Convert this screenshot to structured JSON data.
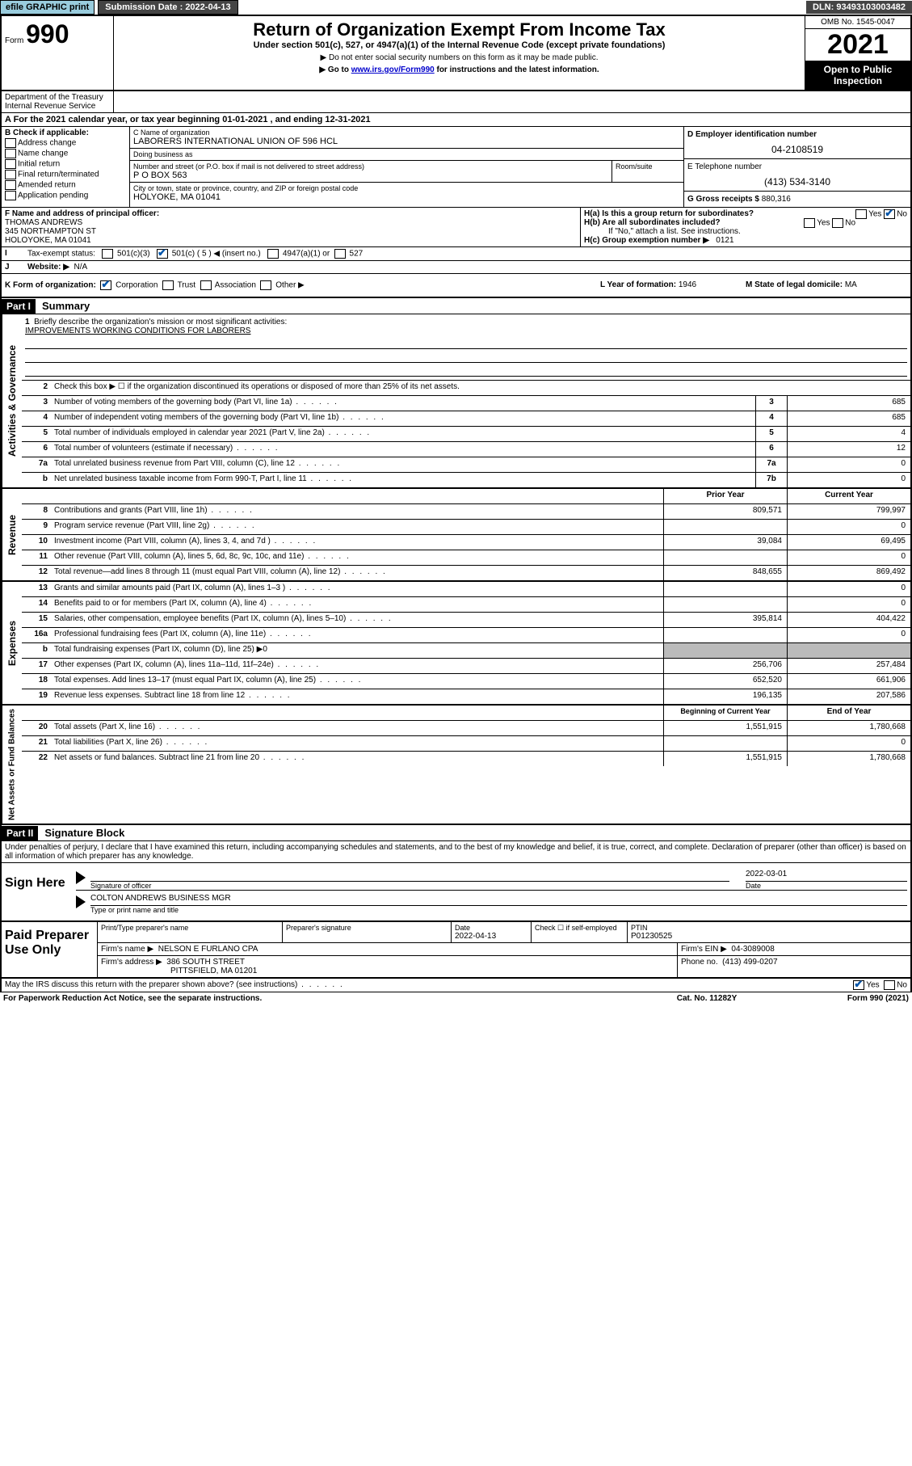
{
  "topbar": {
    "efile": "efile GRAPHIC print",
    "submission_label": "Submission Date : 2022-04-13",
    "dln": "DLN: 93493103003482"
  },
  "header": {
    "form_prefix": "Form",
    "form_no": "990",
    "title": "Return of Organization Exempt From Income Tax",
    "sub1": "Under section 501(c), 527, or 4947(a)(1) of the Internal Revenue Code (except private foundations)",
    "sub2": "▶ Do not enter social security numbers on this form as it may be made public.",
    "sub3_pre": "▶ Go to ",
    "sub3_link": "www.irs.gov/Form990",
    "sub3_post": " for instructions and the latest information.",
    "omb": "OMB No. 1545-0047",
    "year": "2021",
    "open_public": "Open to Public Inspection",
    "dept": "Department of the Treasury\nInternal Revenue Service"
  },
  "period": {
    "text_pre": "A For the 2021 calendar year, or tax year beginning ",
    "begin": "01-01-2021",
    "mid": " , and ending ",
    "end": "12-31-2021"
  },
  "blockB": {
    "b_label": "B Check if applicable:",
    "opts": [
      "Address change",
      "Name change",
      "Initial return",
      "Final return/terminated",
      "Amended return",
      "Application pending"
    ],
    "c_label": "C Name of organization",
    "org_name": "LABORERS INTERNATIONAL UNION OF 596 HCL",
    "dba_label": "Doing business as",
    "dba": "",
    "addr_label": "Number and street (or P.O. box if mail is not delivered to street address)",
    "room_label": "Room/suite",
    "addr": "P O BOX 563",
    "city_label": "City or town, state or province, country, and ZIP or foreign postal code",
    "city": "HOLYOKE, MA  01041",
    "d_label": "D Employer identification number",
    "ein": "04-2108519",
    "e_label": "E Telephone number",
    "phone": "(413) 534-3140",
    "g_label": "G Gross receipts $",
    "gross": "880,316"
  },
  "rowF": {
    "f_label": "F Name and address of principal officer:",
    "name": "THOMAS ANDREWS",
    "addr1": "345 NORTHAMPTON ST",
    "addr2": "HOLOYOKE, MA  01041",
    "ha": "H(a)  Is this a group return for subordinates?",
    "ha_yes": "Yes",
    "ha_no": "No",
    "hb": "H(b)  Are all subordinates included?",
    "hb_yes": "Yes",
    "hb_no": "No",
    "hb_note": "If \"No,\" attach a list. See instructions.",
    "hc": "H(c)  Group exemption number ▶",
    "hc_val": "0121"
  },
  "rowI": {
    "i_label": "Tax-exempt status:",
    "opt1": "501(c)(3)",
    "opt2": "501(c) ( 5 ) ◀ (insert no.)",
    "opt3": "4947(a)(1) or",
    "opt4": "527"
  },
  "rowJ": {
    "j_label": "Website: ▶",
    "site": "N/A"
  },
  "rowK": {
    "k_label": "K Form of organization:",
    "opts": [
      "Corporation",
      "Trust",
      "Association",
      "Other ▶"
    ],
    "l_label": "L Year of formation:",
    "l_val": "1946",
    "m_label": "M State of legal domicile:",
    "m_val": "MA"
  },
  "part1": {
    "header": "Part I",
    "title": "Summary",
    "line1_label": "Briefly describe the organization's mission or most significant activities:",
    "line1_val": "IMPROVEMENTS WORKING CONDITIONS FOR LABORERS",
    "line2": "Check this box ▶ ☐ if the organization discontinued its operations or disposed of more than 25% of its net assets."
  },
  "sideLabels": {
    "gov": "Activities & Governance",
    "rev": "Revenue",
    "exp": "Expenses",
    "net": "Net Assets or Fund Balances"
  },
  "govRows": [
    {
      "n": "3",
      "d": "Number of voting members of the governing body (Part VI, line 1a)",
      "r": "3",
      "v": "685"
    },
    {
      "n": "4",
      "d": "Number of independent voting members of the governing body (Part VI, line 1b)",
      "r": "4",
      "v": "685"
    },
    {
      "n": "5",
      "d": "Total number of individuals employed in calendar year 2021 (Part V, line 2a)",
      "r": "5",
      "v": "4"
    },
    {
      "n": "6",
      "d": "Total number of volunteers (estimate if necessary)",
      "r": "6",
      "v": "12"
    },
    {
      "n": "7a",
      "d": "Total unrelated business revenue from Part VIII, column (C), line 12",
      "r": "7a",
      "v": "0"
    },
    {
      "n": "b",
      "d": "Net unrelated business taxable income from Form 990-T, Part I, line 11",
      "r": "7b",
      "v": "0"
    }
  ],
  "twoColHeader": {
    "prior": "Prior Year",
    "current": "Current Year"
  },
  "revRows": [
    {
      "n": "8",
      "d": "Contributions and grants (Part VIII, line 1h)",
      "p": "809,571",
      "c": "799,997"
    },
    {
      "n": "9",
      "d": "Program service revenue (Part VIII, line 2g)",
      "p": "",
      "c": "0"
    },
    {
      "n": "10",
      "d": "Investment income (Part VIII, column (A), lines 3, 4, and 7d )",
      "p": "39,084",
      "c": "69,495"
    },
    {
      "n": "11",
      "d": "Other revenue (Part VIII, column (A), lines 5, 6d, 8c, 9c, 10c, and 11e)",
      "p": "",
      "c": "0"
    },
    {
      "n": "12",
      "d": "Total revenue—add lines 8 through 11 (must equal Part VIII, column (A), line 12)",
      "p": "848,655",
      "c": "869,492"
    }
  ],
  "expRows": [
    {
      "n": "13",
      "d": "Grants and similar amounts paid (Part IX, column (A), lines 1–3 )",
      "p": "",
      "c": "0"
    },
    {
      "n": "14",
      "d": "Benefits paid to or for members (Part IX, column (A), line 4)",
      "p": "",
      "c": "0"
    },
    {
      "n": "15",
      "d": "Salaries, other compensation, employee benefits (Part IX, column (A), lines 5–10)",
      "p": "395,814",
      "c": "404,422"
    },
    {
      "n": "16a",
      "d": "Professional fundraising fees (Part IX, column (A), line 11e)",
      "p": "",
      "c": "0"
    },
    {
      "n": "b",
      "d": "Total fundraising expenses (Part IX, column (D), line 25) ▶0",
      "grey": true
    },
    {
      "n": "17",
      "d": "Other expenses (Part IX, column (A), lines 11a–11d, 11f–24e)",
      "p": "256,706",
      "c": "257,484"
    },
    {
      "n": "18",
      "d": "Total expenses. Add lines 13–17 (must equal Part IX, column (A), line 25)",
      "p": "652,520",
      "c": "661,906"
    },
    {
      "n": "19",
      "d": "Revenue less expenses. Subtract line 18 from line 12",
      "p": "196,135",
      "c": "207,586"
    }
  ],
  "netHeader": {
    "begin": "Beginning of Current Year",
    "end": "End of Year"
  },
  "netRows": [
    {
      "n": "20",
      "d": "Total assets (Part X, line 16)",
      "p": "1,551,915",
      "c": "1,780,668"
    },
    {
      "n": "21",
      "d": "Total liabilities (Part X, line 26)",
      "p": "",
      "c": "0"
    },
    {
      "n": "22",
      "d": "Net assets or fund balances. Subtract line 21 from line 20",
      "p": "1,551,915",
      "c": "1,780,668"
    }
  ],
  "part2": {
    "header": "Part II",
    "title": "Signature Block",
    "declaration": "Under penalties of perjury, I declare that I have examined this return, including accompanying schedules and statements, and to the best of my knowledge and belief, it is true, correct, and complete. Declaration of preparer (other than officer) is based on all information of which preparer has any knowledge."
  },
  "sign": {
    "here": "Sign Here",
    "sig_label": "Signature of officer",
    "date_label": "Date",
    "date": "2022-03-01",
    "name": "COLTON ANDREWS BUSINESS MGR",
    "name_label": "Type or print name and title"
  },
  "paid": {
    "label": "Paid Preparer Use Only",
    "prep_name_label": "Print/Type preparer's name",
    "prep_sig_label": "Preparer's signature",
    "prep_date_label": "Date",
    "prep_date": "2022-04-13",
    "check_label": "Check ☐ if self-employed",
    "ptin_label": "PTIN",
    "ptin": "P01230525",
    "firm_name_label": "Firm's name   ▶",
    "firm_name": "NELSON E FURLANO CPA",
    "firm_ein_label": "Firm's EIN ▶",
    "firm_ein": "04-3089008",
    "firm_addr_label": "Firm's address ▶",
    "firm_addr1": "386 SOUTH STREET",
    "firm_addr2": "PITTSFIELD, MA  01201",
    "phone_label": "Phone no.",
    "phone": "(413) 499-0207"
  },
  "footer": {
    "discuss": "May the IRS discuss this return with the preparer shown above? (see instructions)",
    "yes": "Yes",
    "no": "No",
    "paperwork": "For Paperwork Reduction Act Notice, see the separate instructions.",
    "cat": "Cat. No. 11282Y",
    "form": "Form 990 (2021)"
  }
}
